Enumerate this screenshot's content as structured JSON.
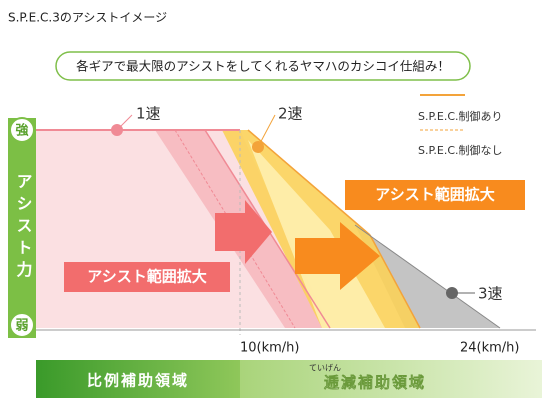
{
  "title": "S.P.E.C.3のアシストイメージ",
  "banner": "各ギアで最大限のアシストをしてくれるヤマハのカシコイ仕組み！",
  "axis": {
    "strong": "強",
    "weak": "弱",
    "label": "アシスト力"
  },
  "gears": [
    "1速",
    "2速",
    "3速"
  ],
  "legend": [
    "S.P.E.C.制御あり",
    "S.P.E.C.制御なし"
  ],
  "arrows": [
    "アシスト範囲拡大",
    "アシスト範囲拡大"
  ],
  "speeds": [
    "10(km/h)",
    "24(km/h)"
  ],
  "zones": [
    {
      "label": "比例補助領域"
    },
    {
      "label": "逓減補助領域",
      "ruby": "ていげん"
    }
  ]
}
